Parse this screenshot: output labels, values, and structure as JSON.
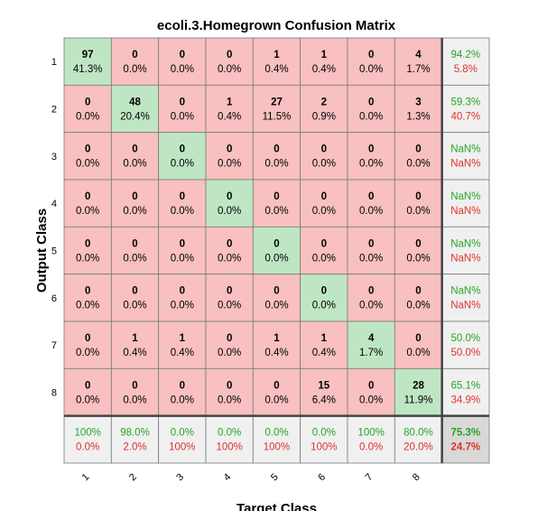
{
  "chart_data": {
    "type": "heatmap",
    "title": "ecoli.3.Homegrown Confusion Matrix",
    "xlabel": "Target Class",
    "ylabel": "Output Class",
    "xticks": [
      "1",
      "2",
      "3",
      "4",
      "5",
      "6",
      "7",
      "8"
    ],
    "yticks": [
      "1",
      "2",
      "3",
      "4",
      "5",
      "6",
      "7",
      "8"
    ],
    "counts": [
      [
        97,
        0,
        0,
        0,
        1,
        1,
        0,
        4
      ],
      [
        0,
        48,
        0,
        1,
        27,
        2,
        0,
        3
      ],
      [
        0,
        0,
        0,
        0,
        0,
        0,
        0,
        0
      ],
      [
        0,
        0,
        0,
        0,
        0,
        0,
        0,
        0
      ],
      [
        0,
        0,
        0,
        0,
        0,
        0,
        0,
        0
      ],
      [
        0,
        0,
        0,
        0,
        0,
        0,
        0,
        0
      ],
      [
        0,
        1,
        1,
        0,
        1,
        1,
        4,
        0
      ],
      [
        0,
        0,
        0,
        0,
        0,
        15,
        0,
        28
      ]
    ],
    "percents": [
      [
        "41.3%",
        "0.0%",
        "0.0%",
        "0.0%",
        "0.4%",
        "0.4%",
        "0.0%",
        "1.7%"
      ],
      [
        "0.0%",
        "20.4%",
        "0.0%",
        "0.4%",
        "11.5%",
        "0.9%",
        "0.0%",
        "1.3%"
      ],
      [
        "0.0%",
        "0.0%",
        "0.0%",
        "0.0%",
        "0.0%",
        "0.0%",
        "0.0%",
        "0.0%"
      ],
      [
        "0.0%",
        "0.0%",
        "0.0%",
        "0.0%",
        "0.0%",
        "0.0%",
        "0.0%",
        "0.0%"
      ],
      [
        "0.0%",
        "0.0%",
        "0.0%",
        "0.0%",
        "0.0%",
        "0.0%",
        "0.0%",
        "0.0%"
      ],
      [
        "0.0%",
        "0.0%",
        "0.0%",
        "0.0%",
        "0.0%",
        "0.0%",
        "0.0%",
        "0.0%"
      ],
      [
        "0.0%",
        "0.4%",
        "0.4%",
        "0.0%",
        "0.4%",
        "0.4%",
        "1.7%",
        "0.0%"
      ],
      [
        "0.0%",
        "0.0%",
        "0.0%",
        "0.0%",
        "0.0%",
        "6.4%",
        "0.0%",
        "11.9%"
      ]
    ],
    "row_summary": [
      [
        "94.2%",
        "5.8%"
      ],
      [
        "59.3%",
        "40.7%"
      ],
      [
        "NaN%",
        "NaN%"
      ],
      [
        "NaN%",
        "NaN%"
      ],
      [
        "NaN%",
        "NaN%"
      ],
      [
        "NaN%",
        "NaN%"
      ],
      [
        "50.0%",
        "50.0%"
      ],
      [
        "65.1%",
        "34.9%"
      ]
    ],
    "col_summary": [
      [
        "100%",
        "0.0%"
      ],
      [
        "98.0%",
        "2.0%"
      ],
      [
        "0.0%",
        "100%"
      ],
      [
        "0.0%",
        "100%"
      ],
      [
        "0.0%",
        "100%"
      ],
      [
        "0.0%",
        "100%"
      ],
      [
        "100%",
        "0.0%"
      ],
      [
        "80.0%",
        "20.0%"
      ]
    ],
    "overall": [
      "75.3%",
      "24.7%"
    ],
    "colors": {
      "diagonal": "#bfe6c3",
      "off_diagonal": "#f8c0c0",
      "summary": "#f0f0f0",
      "overall": "#d8d8d8",
      "correct_text": "#26a526",
      "wrong_text": "#e03030"
    }
  }
}
